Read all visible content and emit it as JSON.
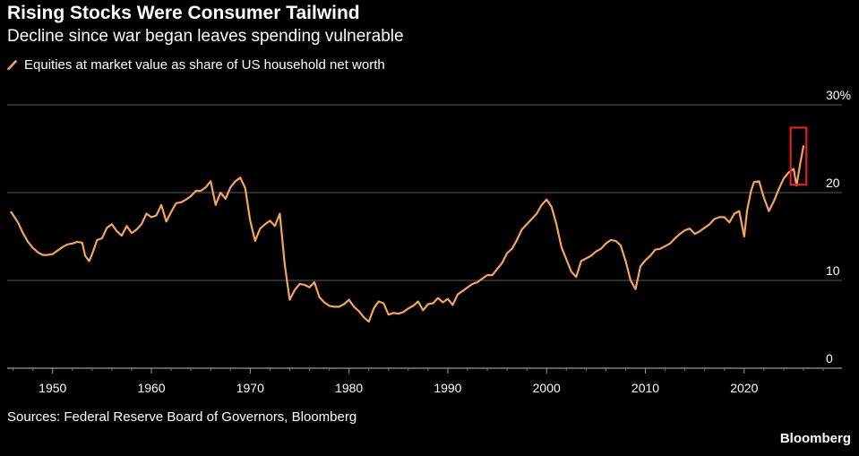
{
  "title": "Rising Stocks Were Consumer Tailwind",
  "subtitle": "Decline since war began leaves spending vulnerable",
  "source": "Sources: Federal Reserve Board of Governors, Bloomberg",
  "brand": "Bloomberg",
  "colors": {
    "line": "#f5a55a",
    "highlight": "#e0201e",
    "grid": "#5a5a5a",
    "background": "#000000"
  },
  "chart_data": {
    "type": "line",
    "title": "Rising Stocks Were Consumer Tailwind",
    "subtitle": "Decline since war began leaves spending vulnerable",
    "xlabel": "",
    "ylabel": "",
    "xlim": [
      1945,
      2030
    ],
    "ylim": [
      0,
      30
    ],
    "grid": true,
    "legend_position": "top-left",
    "x_ticks": [
      {
        "value": 1950,
        "label": "1950"
      },
      {
        "value": 1960,
        "label": "1960"
      },
      {
        "value": 1970,
        "label": "1970"
      },
      {
        "value": 1980,
        "label": "1980"
      },
      {
        "value": 1990,
        "label": "1990"
      },
      {
        "value": 2000,
        "label": "2000"
      },
      {
        "value": 2010,
        "label": "2010"
      },
      {
        "value": 2020,
        "label": "2020"
      }
    ],
    "y_ticks": [
      {
        "value": 30,
        "label": "30%"
      },
      {
        "value": 20,
        "label": "20"
      },
      {
        "value": 10,
        "label": "10"
      },
      {
        "value": 0,
        "label": "0"
      }
    ],
    "highlight": {
      "x": [
        2024.7,
        2026.3
      ],
      "y": [
        20.9,
        27.4
      ]
    },
    "series": [
      {
        "name": "Equities at market value as share of US household net worth",
        "x": [
          1945.8,
          1946.5,
          1947.0,
          1947.5,
          1948.0,
          1948.5,
          1949.0,
          1949.5,
          1950.0,
          1950.5,
          1951.0,
          1951.5,
          1952.0,
          1952.5,
          1953.0,
          1953.3,
          1953.7,
          1954.0,
          1954.5,
          1955.0,
          1955.5,
          1956.0,
          1956.5,
          1957.0,
          1957.5,
          1958.0,
          1958.5,
          1959.0,
          1959.5,
          1960.0,
          1960.5,
          1961.0,
          1961.5,
          1962.0,
          1962.5,
          1963.0,
          1963.5,
          1964.0,
          1964.5,
          1965.0,
          1965.5,
          1966.0,
          1966.5,
          1967.0,
          1967.5,
          1968.0,
          1968.5,
          1969.0,
          1969.5,
          1970.0,
          1970.5,
          1971.0,
          1971.5,
          1972.0,
          1972.5,
          1973.0,
          1973.5,
          1974.0,
          1974.5,
          1975.0,
          1975.5,
          1976.0,
          1976.5,
          1977.0,
          1977.5,
          1978.0,
          1978.5,
          1979.0,
          1979.5,
          1980.0,
          1980.5,
          1981.0,
          1981.5,
          1982.0,
          1982.5,
          1983.0,
          1983.5,
          1984.0,
          1984.5,
          1985.0,
          1985.5,
          1986.0,
          1986.5,
          1987.0,
          1987.5,
          1988.0,
          1988.5,
          1989.0,
          1989.5,
          1990.0,
          1990.5,
          1991.0,
          1991.5,
          1992.0,
          1992.5,
          1993.0,
          1993.5,
          1994.0,
          1994.5,
          1995.0,
          1995.5,
          1996.0,
          1996.5,
          1997.0,
          1997.5,
          1998.0,
          1998.5,
          1999.0,
          1999.5,
          2000.0,
          2000.5,
          2001.0,
          2001.5,
          2002.0,
          2002.5,
          2003.0,
          2003.5,
          2004.0,
          2004.5,
          2005.0,
          2005.5,
          2006.0,
          2006.5,
          2007.0,
          2007.5,
          2008.0,
          2008.5,
          2009.0,
          2009.5,
          2010.0,
          2010.5,
          2011.0,
          2011.5,
          2012.0,
          2012.5,
          2013.0,
          2013.5,
          2014.0,
          2014.5,
          2015.0,
          2015.5,
          2016.0,
          2016.5,
          2017.0,
          2017.5,
          2018.0,
          2018.5,
          2019.0,
          2019.5,
          2020.0,
          2020.3,
          2020.7,
          2021.0,
          2021.5,
          2022.0,
          2022.5,
          2023.0,
          2023.5,
          2024.0,
          2024.5,
          2025.0,
          2025.3,
          2025.7,
          2026.0
        ],
        "values": [
          17.8,
          16.6,
          15.4,
          14.4,
          13.7,
          13.2,
          12.9,
          12.9,
          13.0,
          13.4,
          13.8,
          14.1,
          14.2,
          14.4,
          14.3,
          12.8,
          12.2,
          13.0,
          14.6,
          14.8,
          16.0,
          16.4,
          15.6,
          15.1,
          16.2,
          15.4,
          15.8,
          16.4,
          17.6,
          17.2,
          17.4,
          18.6,
          16.7,
          17.8,
          18.8,
          18.9,
          19.2,
          19.6,
          20.2,
          20.2,
          20.6,
          21.3,
          18.6,
          20.0,
          19.3,
          20.6,
          21.3,
          21.7,
          20.5,
          16.8,
          14.5,
          15.9,
          16.4,
          16.8,
          16.2,
          17.6,
          11.8,
          7.8,
          8.9,
          9.6,
          9.5,
          9.2,
          9.8,
          8.1,
          7.5,
          7.1,
          7.0,
          7.0,
          7.3,
          7.8,
          7.0,
          6.5,
          5.8,
          5.3,
          6.8,
          7.6,
          7.4,
          6.1,
          6.3,
          6.2,
          6.4,
          6.8,
          7.1,
          7.6,
          6.6,
          7.3,
          7.4,
          8.0,
          7.5,
          7.9,
          7.2,
          8.4,
          8.8,
          9.2,
          9.6,
          9.8,
          10.2,
          10.6,
          10.6,
          11.3,
          12.0,
          13.1,
          13.6,
          14.6,
          15.8,
          16.4,
          17.0,
          17.6,
          18.6,
          19.2,
          18.4,
          16.4,
          13.8,
          12.4,
          11.0,
          10.4,
          12.2,
          12.5,
          12.8,
          13.3,
          13.6,
          14.2,
          14.6,
          14.5,
          14.0,
          12.2,
          10.0,
          9.0,
          11.6,
          12.3,
          12.8,
          13.5,
          13.6,
          13.9,
          14.2,
          14.8,
          15.3,
          15.7,
          15.9,
          15.3,
          15.6,
          16.0,
          16.4,
          17.0,
          17.2,
          17.2,
          16.6,
          17.6,
          17.9,
          15.0,
          18.0,
          20.2,
          21.2,
          21.3,
          19.4,
          17.9,
          19.0,
          20.4,
          21.6,
          22.3,
          22.7,
          20.8,
          23.5,
          25.3
        ]
      }
    ]
  }
}
